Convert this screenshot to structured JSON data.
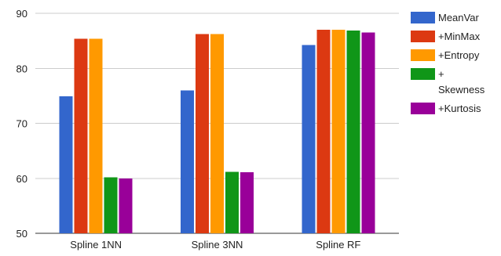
{
  "chart_data": {
    "type": "bar",
    "title": "",
    "xlabel": "",
    "ylabel": "",
    "categories": [
      "Spline 1NN",
      "Spline 3NN",
      "Spline RF"
    ],
    "ylim": [
      50,
      90
    ],
    "yticks": [
      50,
      60,
      70,
      80,
      90
    ],
    "grid": true,
    "legend_position": "right",
    "series": [
      {
        "name": "MeanVar",
        "color": "#3366cc",
        "values": [
          74.9,
          76.0,
          84.2
        ]
      },
      {
        "name": "+MinMax",
        "color": "#dc3912",
        "values": [
          85.4,
          86.2,
          87.0
        ]
      },
      {
        "name": "+Entropy",
        "color": "#ff9900",
        "values": [
          85.4,
          86.2,
          87.0
        ]
      },
      {
        "name": "+ Skewness",
        "legend_lines": [
          "+",
          "Skewness"
        ],
        "color": "#109618",
        "values": [
          60.2,
          61.2,
          86.9
        ]
      },
      {
        "name": "+Kurtosis",
        "color": "#990099",
        "values": [
          60.0,
          61.1,
          86.5
        ]
      }
    ]
  }
}
